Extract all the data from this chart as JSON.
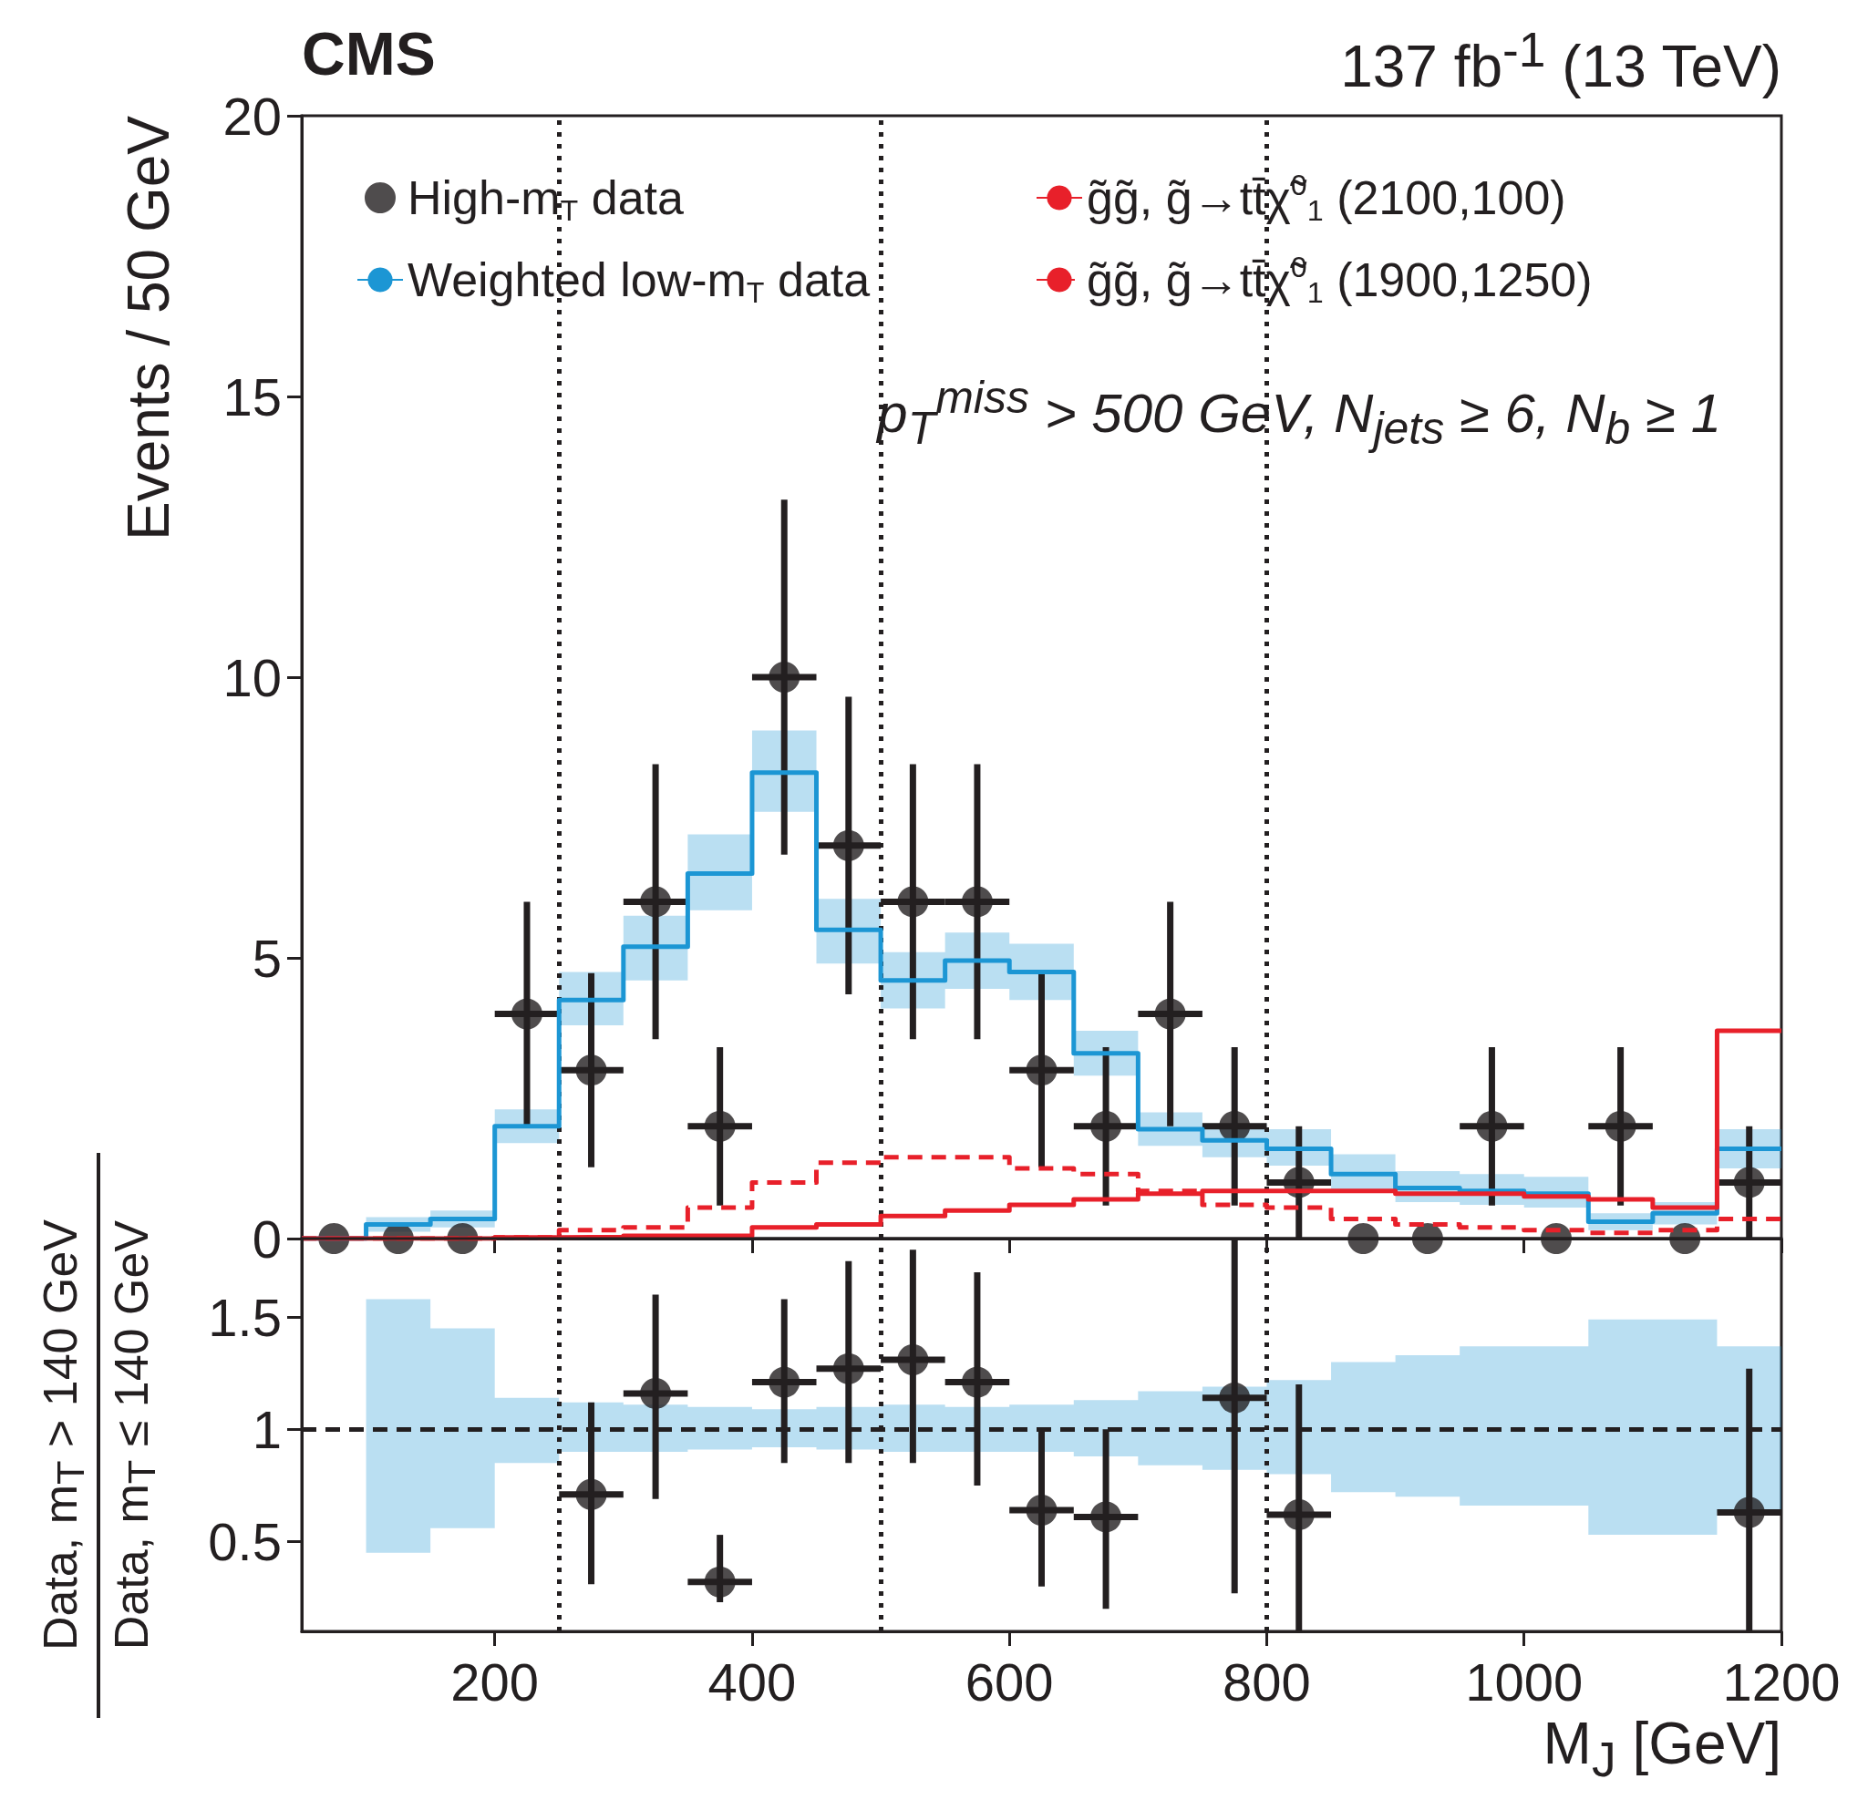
{
  "chart_data": [
    {
      "type": "step",
      "title": "CMS",
      "subtitle": "137 fb$^{-1}$ (13 TeV)",
      "ylabel": "Events / 50 GeV",
      "annotations": [
        "p$_{T}$$^{miss}$ > 500 GeV, N$_{jets}$ ≥ 6, N$_{b}$ ≥ 1"
      ],
      "x": [
        75,
        125,
        175,
        225,
        275,
        325,
        375,
        425,
        475,
        525,
        575,
        625,
        675,
        725,
        775,
        825,
        875,
        925,
        975,
        1025,
        1075,
        1125,
        1175
      ],
      "xlim": [
        50,
        1200
      ],
      "xticks": [
        200,
        400,
        600,
        800,
        1000,
        1200
      ],
      "ylim": [
        0,
        20
      ],
      "yticks": [
        0,
        5,
        10,
        15,
        20
      ],
      "tick_labels": "y",
      "grid": false,
      "legend": "top",
      "ref_lines": [
        {
          "axis": "x",
          "value": 250,
          "color": "#231f20",
          "line_style": "dotted"
        },
        {
          "axis": "x",
          "value": 500,
          "color": "#231f20",
          "line_style": "dotted"
        },
        {
          "axis": "x",
          "value": 800,
          "color": "#231f20",
          "line_style": "dotted"
        }
      ],
      "series": [
        {
          "name": "High-m$_{T}$ data",
          "type": "scatter",
          "marker": "circle",
          "color": "#231f20",
          "values": [
            0,
            0,
            0,
            4,
            3,
            6,
            2,
            10,
            7,
            6,
            6,
            3,
            2,
            4,
            2,
            1,
            0,
            0,
            2,
            0,
            2,
            0,
            1
          ],
          "errors": [
            null,
            null,
            null,
            2,
            1.73,
            2.45,
            1.41,
            3.16,
            2.65,
            2.45,
            2.45,
            1.73,
            1.41,
            2,
            1.41,
            1,
            null,
            null,
            1.41,
            null,
            1.41,
            null,
            1
          ],
          "xerrors": [
            null,
            null,
            null,
            25,
            25,
            25,
            25,
            25,
            25,
            25,
            25,
            25,
            25,
            25,
            25,
            25,
            null,
            null,
            25,
            null,
            25,
            null,
            25
          ]
        },
        {
          "name": "Weighted low-m$_{T}$ data",
          "color": "#1c96d4",
          "x": [
            50,
            100,
            150,
            200,
            250,
            300,
            350,
            400,
            450,
            500,
            550,
            600,
            650,
            700,
            750,
            800,
            850,
            900,
            950,
            1000,
            1050,
            1100,
            1150,
            1200
          ],
          "values": [
            0,
            0.25,
            0.35,
            2.0,
            4.25,
            5.2,
            6.5,
            8.3,
            5.5,
            4.6,
            4.95,
            4.75,
            3.3,
            1.95,
            1.75,
            1.6,
            1.15,
            0.9,
            0.85,
            0.8,
            0.3,
            0.45,
            1.6,
            1.6
          ],
          "lower": [
            null,
            0.12,
            0.2,
            1.7,
            3.8,
            4.6,
            5.85,
            7.6,
            4.9,
            4.1,
            4.45,
            4.25,
            2.9,
            1.65,
            1.45,
            1.3,
            0.85,
            0.65,
            0.6,
            0.55,
            0.15,
            0.25,
            1.25,
            1.25
          ],
          "upper": [
            null,
            0.38,
            0.5,
            2.3,
            4.75,
            5.75,
            7.2,
            9.05,
            6.05,
            5.1,
            5.45,
            5.25,
            3.7,
            2.25,
            2.05,
            1.95,
            1.5,
            1.2,
            1.15,
            1.1,
            0.45,
            0.65,
            1.95,
            1.95
          ]
        },
        {
          "name": "g̃g̃, g̃→tt̄χ̃$^{0}$$_{1}$ (2100,100)",
          "color": "#e8202a",
          "line_style": "solid",
          "x": [
            50,
            100,
            150,
            200,
            250,
            300,
            350,
            400,
            450,
            500,
            550,
            600,
            650,
            700,
            750,
            800,
            850,
            900,
            950,
            1000,
            1050,
            1100,
            1150,
            1200
          ],
          "values": [
            0,
            0,
            0,
            0.02,
            0.03,
            0.05,
            0.05,
            0.2,
            0.25,
            0.4,
            0.5,
            0.6,
            0.7,
            0.8,
            0.85,
            0.85,
            0.85,
            0.8,
            0.8,
            0.75,
            0.7,
            0.55,
            3.7,
            3.7
          ]
        },
        {
          "name": "g̃g̃, g̃→tt̄χ̃$^{0}$$_{1}$ (1900,1250)",
          "color": "#e8202a",
          "line_style": "dashed",
          "x": [
            50,
            100,
            150,
            200,
            250,
            300,
            350,
            400,
            450,
            500,
            550,
            600,
            650,
            700,
            750,
            800,
            850,
            900,
            950,
            1000,
            1050,
            1100,
            1150,
            1200
          ],
          "values": [
            0,
            0,
            0,
            0.02,
            0.15,
            0.2,
            0.55,
            1.0,
            1.35,
            1.45,
            1.45,
            1.25,
            1.15,
            0.85,
            0.6,
            0.55,
            0.35,
            0.25,
            0.2,
            0.15,
            0.1,
            0.15,
            0.35,
            0.35
          ]
        }
      ]
    },
    {
      "type": "scatter",
      "ylabel": "Data, m$_{T}$ > 140 GeV\nData, m$_{T}$ ≤ 140 GeV",
      "xlabel": "M$_{J}$ [GeV]",
      "xlim": [
        50,
        1200
      ],
      "xticks": [
        200,
        400,
        600,
        800,
        1000,
        1200
      ],
      "ylim": [
        0.1,
        1.85
      ],
      "yticks": [
        0.5,
        1,
        1.5
      ],
      "grid": false,
      "ref_lines": [
        {
          "axis": "x",
          "value": 250,
          "color": "#231f20",
          "line_style": "dotted"
        },
        {
          "axis": "x",
          "value": 500,
          "color": "#231f20",
          "line_style": "dotted"
        },
        {
          "axis": "x",
          "value": 800,
          "color": "#231f20",
          "line_style": "dotted"
        },
        {
          "axis": "y",
          "value": 1,
          "color": "#231f20",
          "line_style": "dashed"
        }
      ],
      "series": [
        {
          "type": "step",
          "color": "#1c96d4",
          "x": [
            100,
            150,
            200,
            250,
            300,
            350,
            400,
            450,
            500,
            550,
            600,
            650,
            700,
            750,
            800,
            850,
            900,
            950,
            1000,
            1050,
            1100,
            1150,
            1200
          ],
          "values": [
            null,
            null,
            null,
            null,
            null,
            null,
            null,
            null,
            null,
            null,
            null,
            null,
            null,
            null,
            null,
            null,
            null,
            null,
            null,
            null,
            null,
            null,
            null
          ],
          "lower": [
            0.45,
            0.56,
            0.85,
            0.9,
            0.9,
            0.91,
            0.92,
            0.91,
            0.9,
            0.9,
            0.9,
            0.88,
            0.84,
            0.82,
            0.8,
            0.72,
            0.7,
            0.66,
            0.66,
            0.53,
            0.53,
            0.63,
            0.63
          ],
          "upper": [
            1.58,
            1.45,
            1.14,
            1.12,
            1.11,
            1.1,
            1.09,
            1.1,
            1.11,
            1.1,
            1.11,
            1.13,
            1.17,
            1.19,
            1.22,
            1.3,
            1.33,
            1.37,
            1.37,
            1.49,
            1.49,
            1.37,
            1.37
          ]
        },
        {
          "marker": "circle",
          "color": "#231f20",
          "x": [
            275,
            325,
            375,
            425,
            475,
            525,
            575,
            625,
            675,
            775,
            825,
            1175
          ],
          "values": [
            0.71,
            1.16,
            0.32,
            1.21,
            1.27,
            1.31,
            1.21,
            0.64,
            0.61,
            1.14,
            0.62,
            0.63
          ],
          "errors": [
            [
              0.31,
              1.12
            ],
            [
              0.69,
              1.6
            ],
            [
              0.23,
              0.53
            ],
            [
              0.85,
              1.58
            ],
            [
              0.85,
              1.75
            ],
            [
              0.85,
              1.8
            ],
            [
              0.75,
              1.7
            ],
            [
              0.3,
              1.0
            ],
            [
              0.2,
              1.0
            ],
            [
              0.27,
              1.85
            ],
            [
              0.1,
              1.2
            ],
            [
              0.1,
              1.27
            ]
          ],
          "xerrors": [
            25,
            25,
            25,
            25,
            25,
            25,
            25,
            25,
            25,
            25,
            25,
            25
          ]
        }
      ]
    }
  ]
}
